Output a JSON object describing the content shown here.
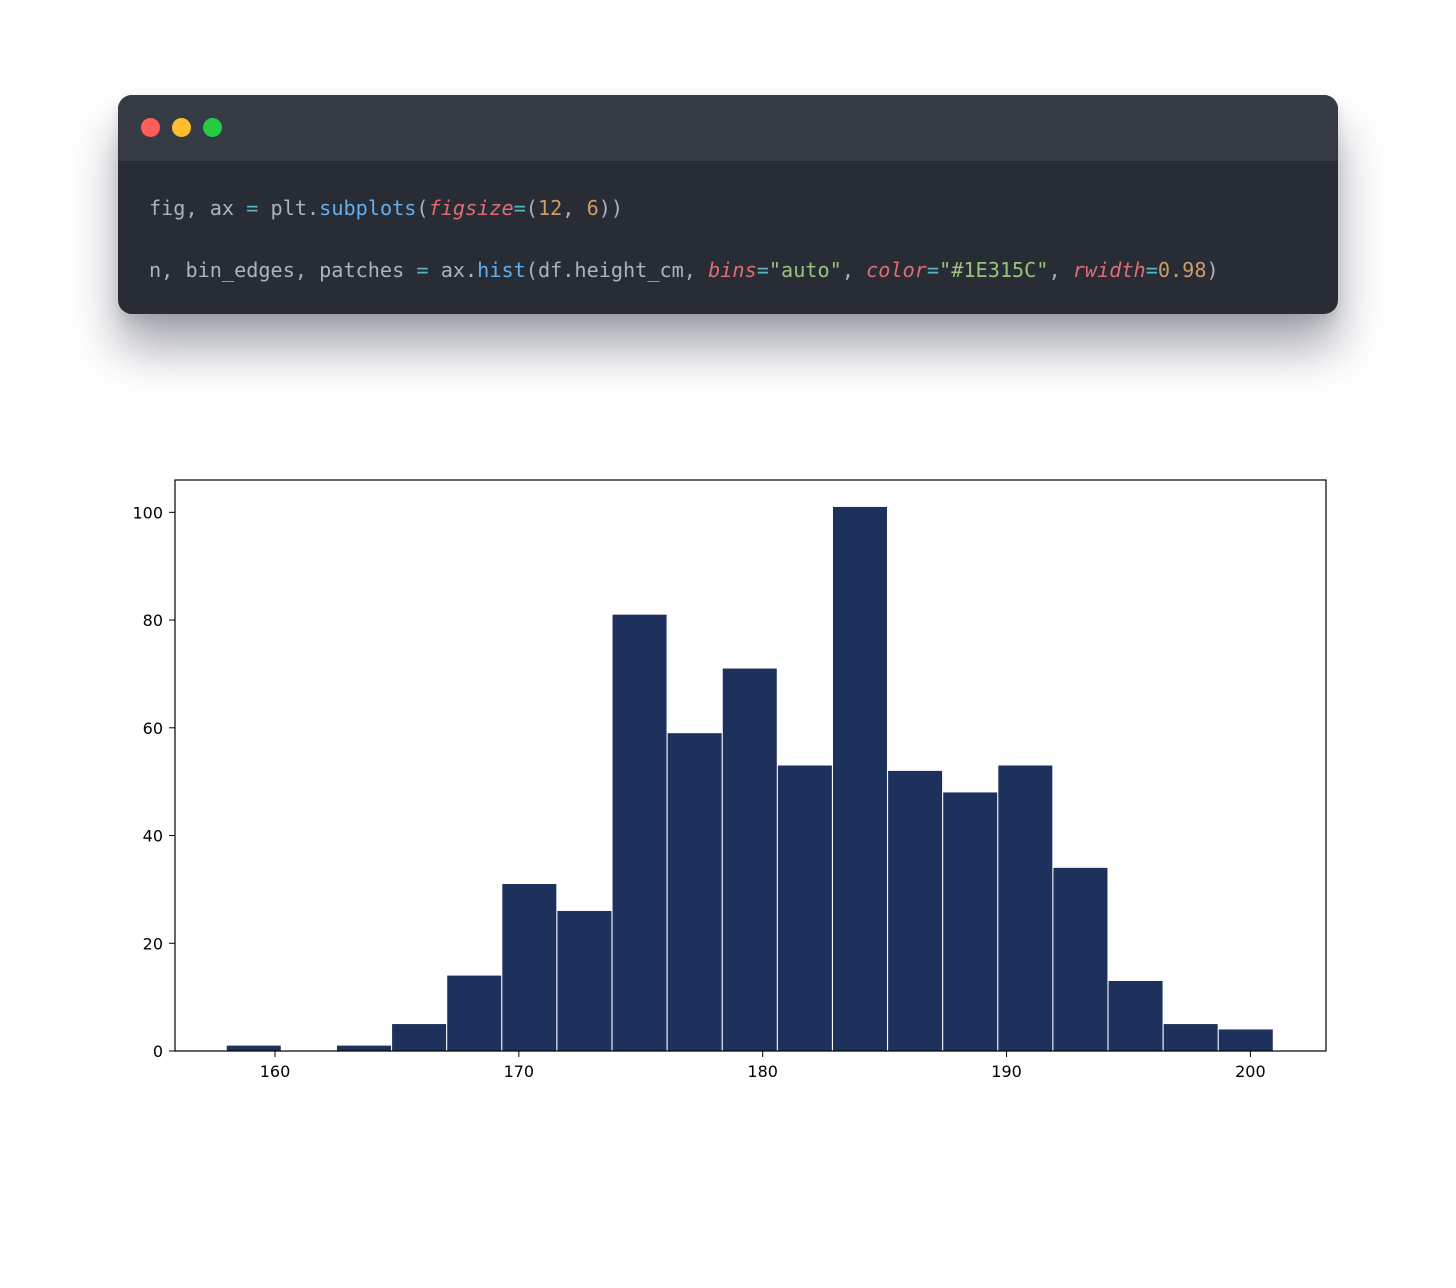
{
  "code_window": {
    "buttons": [
      {
        "name": "close",
        "color": "#ff5f56"
      },
      {
        "name": "minimize",
        "color": "#ffbd2e"
      },
      {
        "name": "maximize",
        "color": "#27c93f"
      }
    ],
    "lines": [
      [
        {
          "t": "fig, ax ",
          "c": "plain"
        },
        {
          "t": "=",
          "c": "op"
        },
        {
          "t": " plt.",
          "c": "plain"
        },
        {
          "t": "subplots",
          "c": "fn"
        },
        {
          "t": "(",
          "c": "plain"
        },
        {
          "t": "figsize",
          "c": "kw"
        },
        {
          "t": "=",
          "c": "op"
        },
        {
          "t": "(",
          "c": "plain"
        },
        {
          "t": "12",
          "c": "num"
        },
        {
          "t": ", ",
          "c": "plain"
        },
        {
          "t": "6",
          "c": "num"
        },
        {
          "t": "))",
          "c": "plain"
        }
      ],
      [
        {
          "t": "n, bin_edges, patches ",
          "c": "plain"
        },
        {
          "t": "=",
          "c": "op"
        },
        {
          "t": " ax.",
          "c": "plain"
        },
        {
          "t": "hist",
          "c": "fn"
        },
        {
          "t": "(df.height_cm, ",
          "c": "plain"
        },
        {
          "t": "bins",
          "c": "kw"
        },
        {
          "t": "=",
          "c": "op"
        },
        {
          "t": "\"auto\"",
          "c": "str"
        },
        {
          "t": ", ",
          "c": "plain"
        },
        {
          "t": "color",
          "c": "kw"
        },
        {
          "t": "=",
          "c": "op"
        },
        {
          "t": "\"#1E315C\"",
          "c": "str"
        },
        {
          "t": ", ",
          "c": "plain"
        },
        {
          "t": "rwidth",
          "c": "kw"
        },
        {
          "t": "=",
          "c": "op"
        },
        {
          "t": "0.98",
          "c": "num"
        },
        {
          "t": ")",
          "c": "plain"
        }
      ]
    ]
  },
  "chart_data": {
    "type": "bar",
    "subtype": "histogram",
    "bar_color": "#1E315C",
    "rwidth": 0.98,
    "bin_edges": [
      158.0,
      160.26,
      162.52,
      164.78,
      167.04,
      169.3,
      171.56,
      173.82,
      176.08,
      178.34,
      180.6,
      182.86,
      185.12,
      187.38,
      189.64,
      191.9,
      194.16,
      196.42,
      198.68,
      200.94
    ],
    "values": [
      1,
      0,
      1,
      5,
      14,
      31,
      26,
      81,
      59,
      71,
      53,
      101,
      52,
      48,
      53,
      34,
      13,
      5,
      4
    ],
    "xlim": [
      155.9,
      203.1
    ],
    "ylim": [
      0,
      106
    ],
    "xticks": [
      160,
      170,
      180,
      190,
      200
    ],
    "yticks": [
      0,
      20,
      40,
      60,
      80,
      100
    ],
    "title": "",
    "xlabel": "",
    "ylabel": "",
    "grid": false
  }
}
